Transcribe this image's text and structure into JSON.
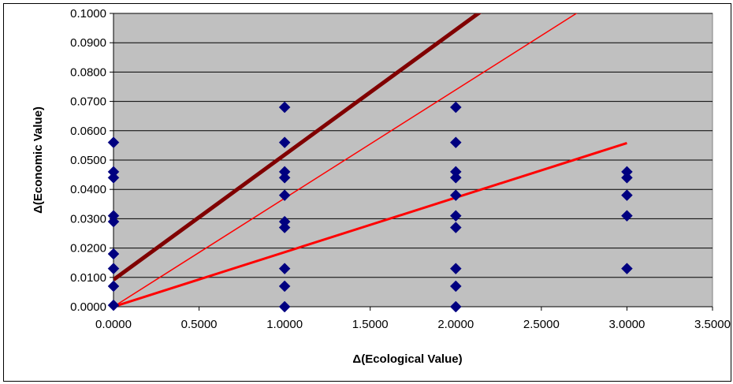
{
  "chart_data": {
    "type": "scatter",
    "title": "",
    "xlabel": "Δ(Ecological Value)",
    "ylabel": "Δ(Economic Value)",
    "xlim": [
      0,
      3.5
    ],
    "ylim": [
      0,
      0.1
    ],
    "x_ticks": [
      "0.0000",
      "0.5000",
      "1.0000",
      "1.5000",
      "2.0000",
      "2.5000",
      "3.0000",
      "3.5000"
    ],
    "y_ticks": [
      "0.0000",
      "0.0100",
      "0.0200",
      "0.0300",
      "0.0400",
      "0.0500",
      "0.0600",
      "0.0700",
      "0.0800",
      "0.0900",
      "0.1000"
    ],
    "grid": "horizontal",
    "legend": "none",
    "plot_background": "#c0c0c0",
    "series": [
      {
        "kind": "points",
        "marker": "diamond",
        "color": "#000080",
        "points": [
          [
            0,
            0.056
          ],
          [
            0,
            0.046
          ],
          [
            0,
            0.044
          ],
          [
            0,
            0.031
          ],
          [
            0,
            0.029
          ],
          [
            0,
            0.018
          ],
          [
            0,
            0.013
          ],
          [
            0,
            0.007
          ],
          [
            0,
            0.0005
          ],
          [
            1,
            0.068
          ],
          [
            1,
            0.056
          ],
          [
            1,
            0.046
          ],
          [
            1,
            0.044
          ],
          [
            1,
            0.038
          ],
          [
            1,
            0.029
          ],
          [
            1,
            0.027
          ],
          [
            1,
            0.013
          ],
          [
            1,
            0.007
          ],
          [
            1,
            0.0
          ],
          [
            2,
            0.068
          ],
          [
            2,
            0.056
          ],
          [
            2,
            0.046
          ],
          [
            2,
            0.044
          ],
          [
            2,
            0.038
          ],
          [
            2,
            0.031
          ],
          [
            2,
            0.027
          ],
          [
            2,
            0.013
          ],
          [
            2,
            0.007
          ],
          [
            2,
            0.0
          ],
          [
            3,
            0.046
          ],
          [
            3,
            0.044
          ],
          [
            3,
            0.038
          ],
          [
            3,
            0.031
          ],
          [
            3,
            0.013
          ]
        ]
      },
      {
        "kind": "line",
        "color": "#800000",
        "width": "thick",
        "points": [
          [
            0,
            0.0092
          ],
          [
            2.19,
            0.1025
          ]
        ]
      },
      {
        "kind": "line",
        "color": "#ff0000",
        "width": "thin",
        "points": [
          [
            0,
            0.0
          ],
          [
            2.745,
            0.1015
          ]
        ]
      },
      {
        "kind": "line",
        "color": "#ff0000",
        "width": "medium",
        "points": [
          [
            0,
            0.0
          ],
          [
            3.0,
            0.0558
          ]
        ]
      }
    ]
  }
}
